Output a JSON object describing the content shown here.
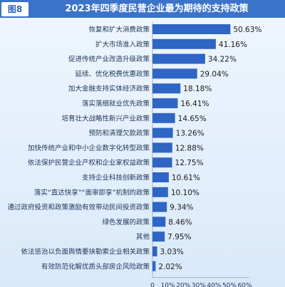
{
  "figure_label": "图8",
  "chart_data": {
    "type": "bar",
    "orientation": "horizontal",
    "title": "2023年四季度民营企业最为期待的支持政策",
    "categories": [
      "恢复和扩大消费政策",
      "扩大市场准入政策",
      "促进传统产业改造升级政策",
      "延续、优化税费优惠政策",
      "加大金融支持实体经济政策",
      "落实落细就业优先政策",
      "培育壮大战略性新兴产业政策",
      "预防和清理欠款政策",
      "加快传统产业和中小企业数字化转型政策",
      "依法保护民营企业产权和企业家权益政策",
      "支持企业科技创新政策",
      "落实“直达快享”“面审即享”机制的政策",
      "通过政府投资和政策激励有效带动民间投资政策",
      "绿色发展的政策",
      "其他",
      "依法惩治以负面舆情要挟勒索企业相关政策",
      "有效防范化解优质头部房企风险政策"
    ],
    "values": [
      50.63,
      41.16,
      34.22,
      29.04,
      18.18,
      16.41,
      14.65,
      13.26,
      12.88,
      12.75,
      10.61,
      10.1,
      9.34,
      8.46,
      7.95,
      3.03,
      2.02
    ],
    "value_labels": [
      "50.63%",
      "41.16%",
      "34.22%",
      "29.04%",
      "18.18%",
      "16.41%",
      "14.65%",
      "13.26%",
      "12.88%",
      "12.75%",
      "10.61%",
      "10.10%",
      "9.34%",
      "8.46%",
      "7.95%",
      "3.03%",
      "2.02%"
    ],
    "x_ticks": [
      "0",
      "10%",
      "20%",
      "30%",
      "40%",
      "50%",
      "60%"
    ],
    "xlim": [
      0,
      60
    ],
    "grid": false,
    "bar_color": "#2f65c4",
    "axis_color": "#9fb5d3"
  }
}
